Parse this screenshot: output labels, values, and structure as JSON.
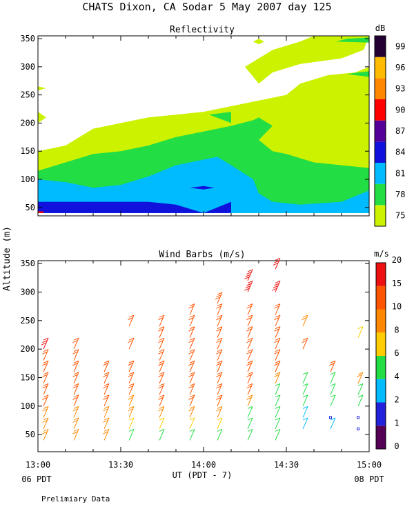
{
  "title": "CHATS Dixon, CA  Sodar   5 May 2007  day 125",
  "footer_note": "Prelimiary Data",
  "ylabel": "Altitude (m)",
  "chart_data": [
    {
      "type": "heatmap",
      "title": "Reflectivity",
      "colorbar_unit": "dB",
      "colorbar_ticks": [
        "75",
        "78",
        "81",
        "84",
        "87",
        "90",
        "93",
        "96",
        "99"
      ],
      "colorbar_colors": [
        "#ccf200",
        "#22dd44",
        "#00bbff",
        "#1111dd",
        "#550099",
        "#ff0000",
        "#ff8800",
        "#ffbb00",
        "#220033"
      ],
      "yticks": [
        50,
        100,
        150,
        200,
        250,
        300,
        350
      ],
      "ylim": [
        35,
        355
      ],
      "xlim_minutes": [
        0,
        120
      ],
      "levels_note": "contour regions (dB)",
      "regions": [
        {
          "level": "75",
          "color": "#ccf200",
          "points": [
            [
              0,
              40
            ],
            [
              0,
              150
            ],
            [
              10,
              160
            ],
            [
              20,
              190
            ],
            [
              30,
              200
            ],
            [
              40,
              210
            ],
            [
              50,
              215
            ],
            [
              60,
              220
            ],
            [
              70,
              230
            ],
            [
              80,
              240
            ],
            [
              90,
              250
            ],
            [
              95,
              270
            ],
            [
              105,
              285
            ],
            [
              115,
              290
            ],
            [
              120,
              300
            ],
            [
              120,
              40
            ]
          ]
        },
        {
          "level": "75",
          "color": "#ccf200",
          "points": [
            [
              80,
              270
            ],
            [
              85,
              290
            ],
            [
              95,
              305
            ],
            [
              110,
              315
            ],
            [
              118,
              330
            ],
            [
              120,
              355
            ],
            [
              100,
              355
            ],
            [
              95,
              345
            ],
            [
              85,
              330
            ],
            [
              75,
              300
            ]
          ]
        },
        {
          "level": "75",
          "color": "#ccf200",
          "points": [
            [
              0,
              265
            ],
            [
              3,
              262
            ],
            [
              0,
              258
            ]
          ]
        },
        {
          "level": "75",
          "color": "#ccf200",
          "points": [
            [
              0,
              220
            ],
            [
              3,
              210
            ],
            [
              0,
              200
            ]
          ]
        },
        {
          "level": "75",
          "color": "#ccf200",
          "points": [
            [
              78,
              345
            ],
            [
              80,
              340
            ],
            [
              82,
              345
            ],
            [
              80,
              350
            ]
          ]
        },
        {
          "level": "78",
          "color": "#22dd44",
          "points": [
            [
              0,
              40
            ],
            [
              0,
              115
            ],
            [
              10,
              130
            ],
            [
              20,
              145
            ],
            [
              30,
              150
            ],
            [
              40,
              160
            ],
            [
              50,
              175
            ],
            [
              60,
              185
            ],
            [
              70,
              195
            ],
            [
              78,
              205
            ],
            [
              80,
              210
            ],
            [
              85,
              195
            ],
            [
              80,
              170
            ],
            [
              85,
              150
            ],
            [
              90,
              145
            ],
            [
              100,
              130
            ],
            [
              110,
              125
            ],
            [
              120,
              120
            ],
            [
              120,
              40
            ]
          ]
        },
        {
          "level": "78",
          "color": "#22dd44",
          "points": [
            [
              108,
              345
            ],
            [
              112,
              350
            ],
            [
              120,
              352
            ],
            [
              120,
              343
            ]
          ]
        },
        {
          "level": "78",
          "color": "#22dd44",
          "points": [
            [
              112,
              287
            ],
            [
              116,
              290
            ],
            [
              120,
              292
            ],
            [
              120,
              282
            ]
          ]
        },
        {
          "level": "78",
          "color": "#22dd44",
          "points": [
            [
              62,
              215
            ],
            [
              70,
              220
            ],
            [
              70,
              200
            ]
          ]
        },
        {
          "level": "81",
          "color": "#00bbff",
          "points": [
            [
              0,
              40
            ],
            [
              0,
              100
            ],
            [
              10,
              95
            ],
            [
              20,
              85
            ],
            [
              30,
              90
            ],
            [
              40,
              105
            ],
            [
              50,
              125
            ],
            [
              65,
              140
            ],
            [
              70,
              125
            ],
            [
              78,
              100
            ],
            [
              80,
              75
            ],
            [
              85,
              60
            ],
            [
              95,
              55
            ],
            [
              110,
              60
            ],
            [
              120,
              80
            ],
            [
              120,
              40
            ]
          ]
        },
        {
          "level": "84",
          "color": "#1111dd",
          "points": [
            [
              0,
              40
            ],
            [
              0,
              60
            ],
            [
              10,
              60
            ],
            [
              20,
              60
            ],
            [
              40,
              60
            ],
            [
              50,
              55
            ],
            [
              60,
              40
            ]
          ]
        },
        {
          "level": "84",
          "color": "#1111dd",
          "points": [
            [
              55,
              85
            ],
            [
              60,
              82
            ],
            [
              64,
              85
            ],
            [
              60,
              88
            ]
          ]
        },
        {
          "level": "84",
          "color": "#1111dd",
          "points": [
            [
              60,
              40
            ],
            [
              70,
              60
            ],
            [
              70,
              40
            ]
          ]
        },
        {
          "level": "90",
          "color": "#ff0000",
          "points": [
            [
              0,
              40
            ],
            [
              0,
              43
            ],
            [
              2,
              43
            ],
            [
              2,
              40
            ]
          ]
        }
      ]
    },
    {
      "type": "scatter",
      "title": "Wind Barbs (m/s)",
      "colorbar_unit": "m/s",
      "colorbar_ticks": [
        "0",
        "1",
        "2",
        "4",
        "6",
        "8",
        "10",
        "15",
        "20"
      ],
      "colorbar_colors": [
        "#550055",
        "#2222dd",
        "#00bbff",
        "#22dd44",
        "#ffcc00",
        "#ff8800",
        "#ff5500",
        "#ee1111"
      ],
      "yticks": [
        50,
        100,
        150,
        200,
        250,
        300,
        350
      ],
      "ylim": [
        20,
        355
      ],
      "xticks": [
        "13:00",
        "13:30",
        "14:00",
        "14:30",
        "15:00"
      ],
      "xlabel": "UT  (PDT - 7)",
      "left_pdt": "06 PDT",
      "right_pdt": "08 PDT",
      "columns_minutes": [
        2,
        13,
        24,
        33,
        44,
        55,
        65,
        76,
        86,
        96,
        106,
        116
      ],
      "profiles": [
        {
          "t": 2,
          "alts": [
            40,
            60,
            80,
            100,
            120,
            140,
            160,
            180,
            200
          ],
          "speeds": [
            8,
            9,
            9,
            10,
            10,
            10,
            10,
            10,
            15
          ]
        },
        {
          "t": 13,
          "alts": [
            40,
            60,
            80,
            100,
            120,
            140,
            160,
            180,
            200
          ],
          "speeds": [
            8,
            9,
            9,
            10,
            10,
            10,
            10,
            10,
            10
          ]
        },
        {
          "t": 24,
          "alts": [
            40,
            60,
            80,
            100,
            120,
            140,
            160
          ],
          "speeds": [
            8,
            8,
            9,
            10,
            10,
            10,
            10
          ]
        },
        {
          "t": 33,
          "alts": [
            40,
            60,
            80,
            100,
            120,
            140,
            160,
            200,
            240
          ],
          "speeds": [
            5,
            6,
            9,
            9,
            10,
            10,
            10,
            10,
            10
          ]
        },
        {
          "t": 44,
          "alts": [
            40,
            60,
            80,
            100,
            120,
            140,
            160,
            180,
            200,
            220,
            240
          ],
          "speeds": [
            5,
            6,
            8,
            10,
            10,
            10,
            10,
            10,
            10,
            10,
            10
          ]
        },
        {
          "t": 55,
          "alts": [
            40,
            60,
            80,
            100,
            120,
            140,
            160,
            180,
            200,
            220,
            240,
            260
          ],
          "speeds": [
            5,
            6,
            8,
            10,
            10,
            10,
            10,
            10,
            10,
            10,
            10,
            10
          ]
        },
        {
          "t": 65,
          "alts": [
            40,
            60,
            80,
            100,
            120,
            140,
            160,
            180,
            200,
            220,
            240,
            260,
            280
          ],
          "speeds": [
            5,
            6,
            8,
            10,
            10,
            10,
            10,
            10,
            10,
            10,
            10,
            10,
            13
          ]
        },
        {
          "t": 76,
          "alts": [
            40,
            60,
            80,
            100,
            120,
            140,
            160,
            180,
            200,
            220,
            240,
            260,
            300,
            320
          ],
          "speeds": [
            5,
            5,
            5,
            8,
            10,
            10,
            10,
            10,
            10,
            10,
            10,
            10,
            20,
            20
          ]
        },
        {
          "t": 86,
          "alts": [
            40,
            60,
            80,
            100,
            120,
            140,
            160,
            180,
            200,
            220,
            240,
            260,
            300,
            340
          ],
          "speeds": [
            5,
            4,
            5,
            5,
            5,
            8,
            10,
            10,
            10,
            10,
            10,
            10,
            20,
            15
          ]
        },
        {
          "t": 96,
          "alts": [
            60,
            80,
            100,
            120,
            140,
            200,
            240
          ],
          "speeds": [
            2,
            3,
            5,
            5,
            5,
            10,
            8
          ]
        },
        {
          "t": 106,
          "alts": [
            60,
            80,
            100,
            120,
            140,
            160
          ],
          "speeds": [
            2,
            1,
            5,
            5,
            5,
            10
          ]
        },
        {
          "t": 116,
          "alts": [
            60,
            80,
            100,
            120,
            140,
            220
          ],
          "speeds": [
            1,
            1,
            4,
            5,
            9,
            6
          ]
        }
      ]
    }
  ]
}
